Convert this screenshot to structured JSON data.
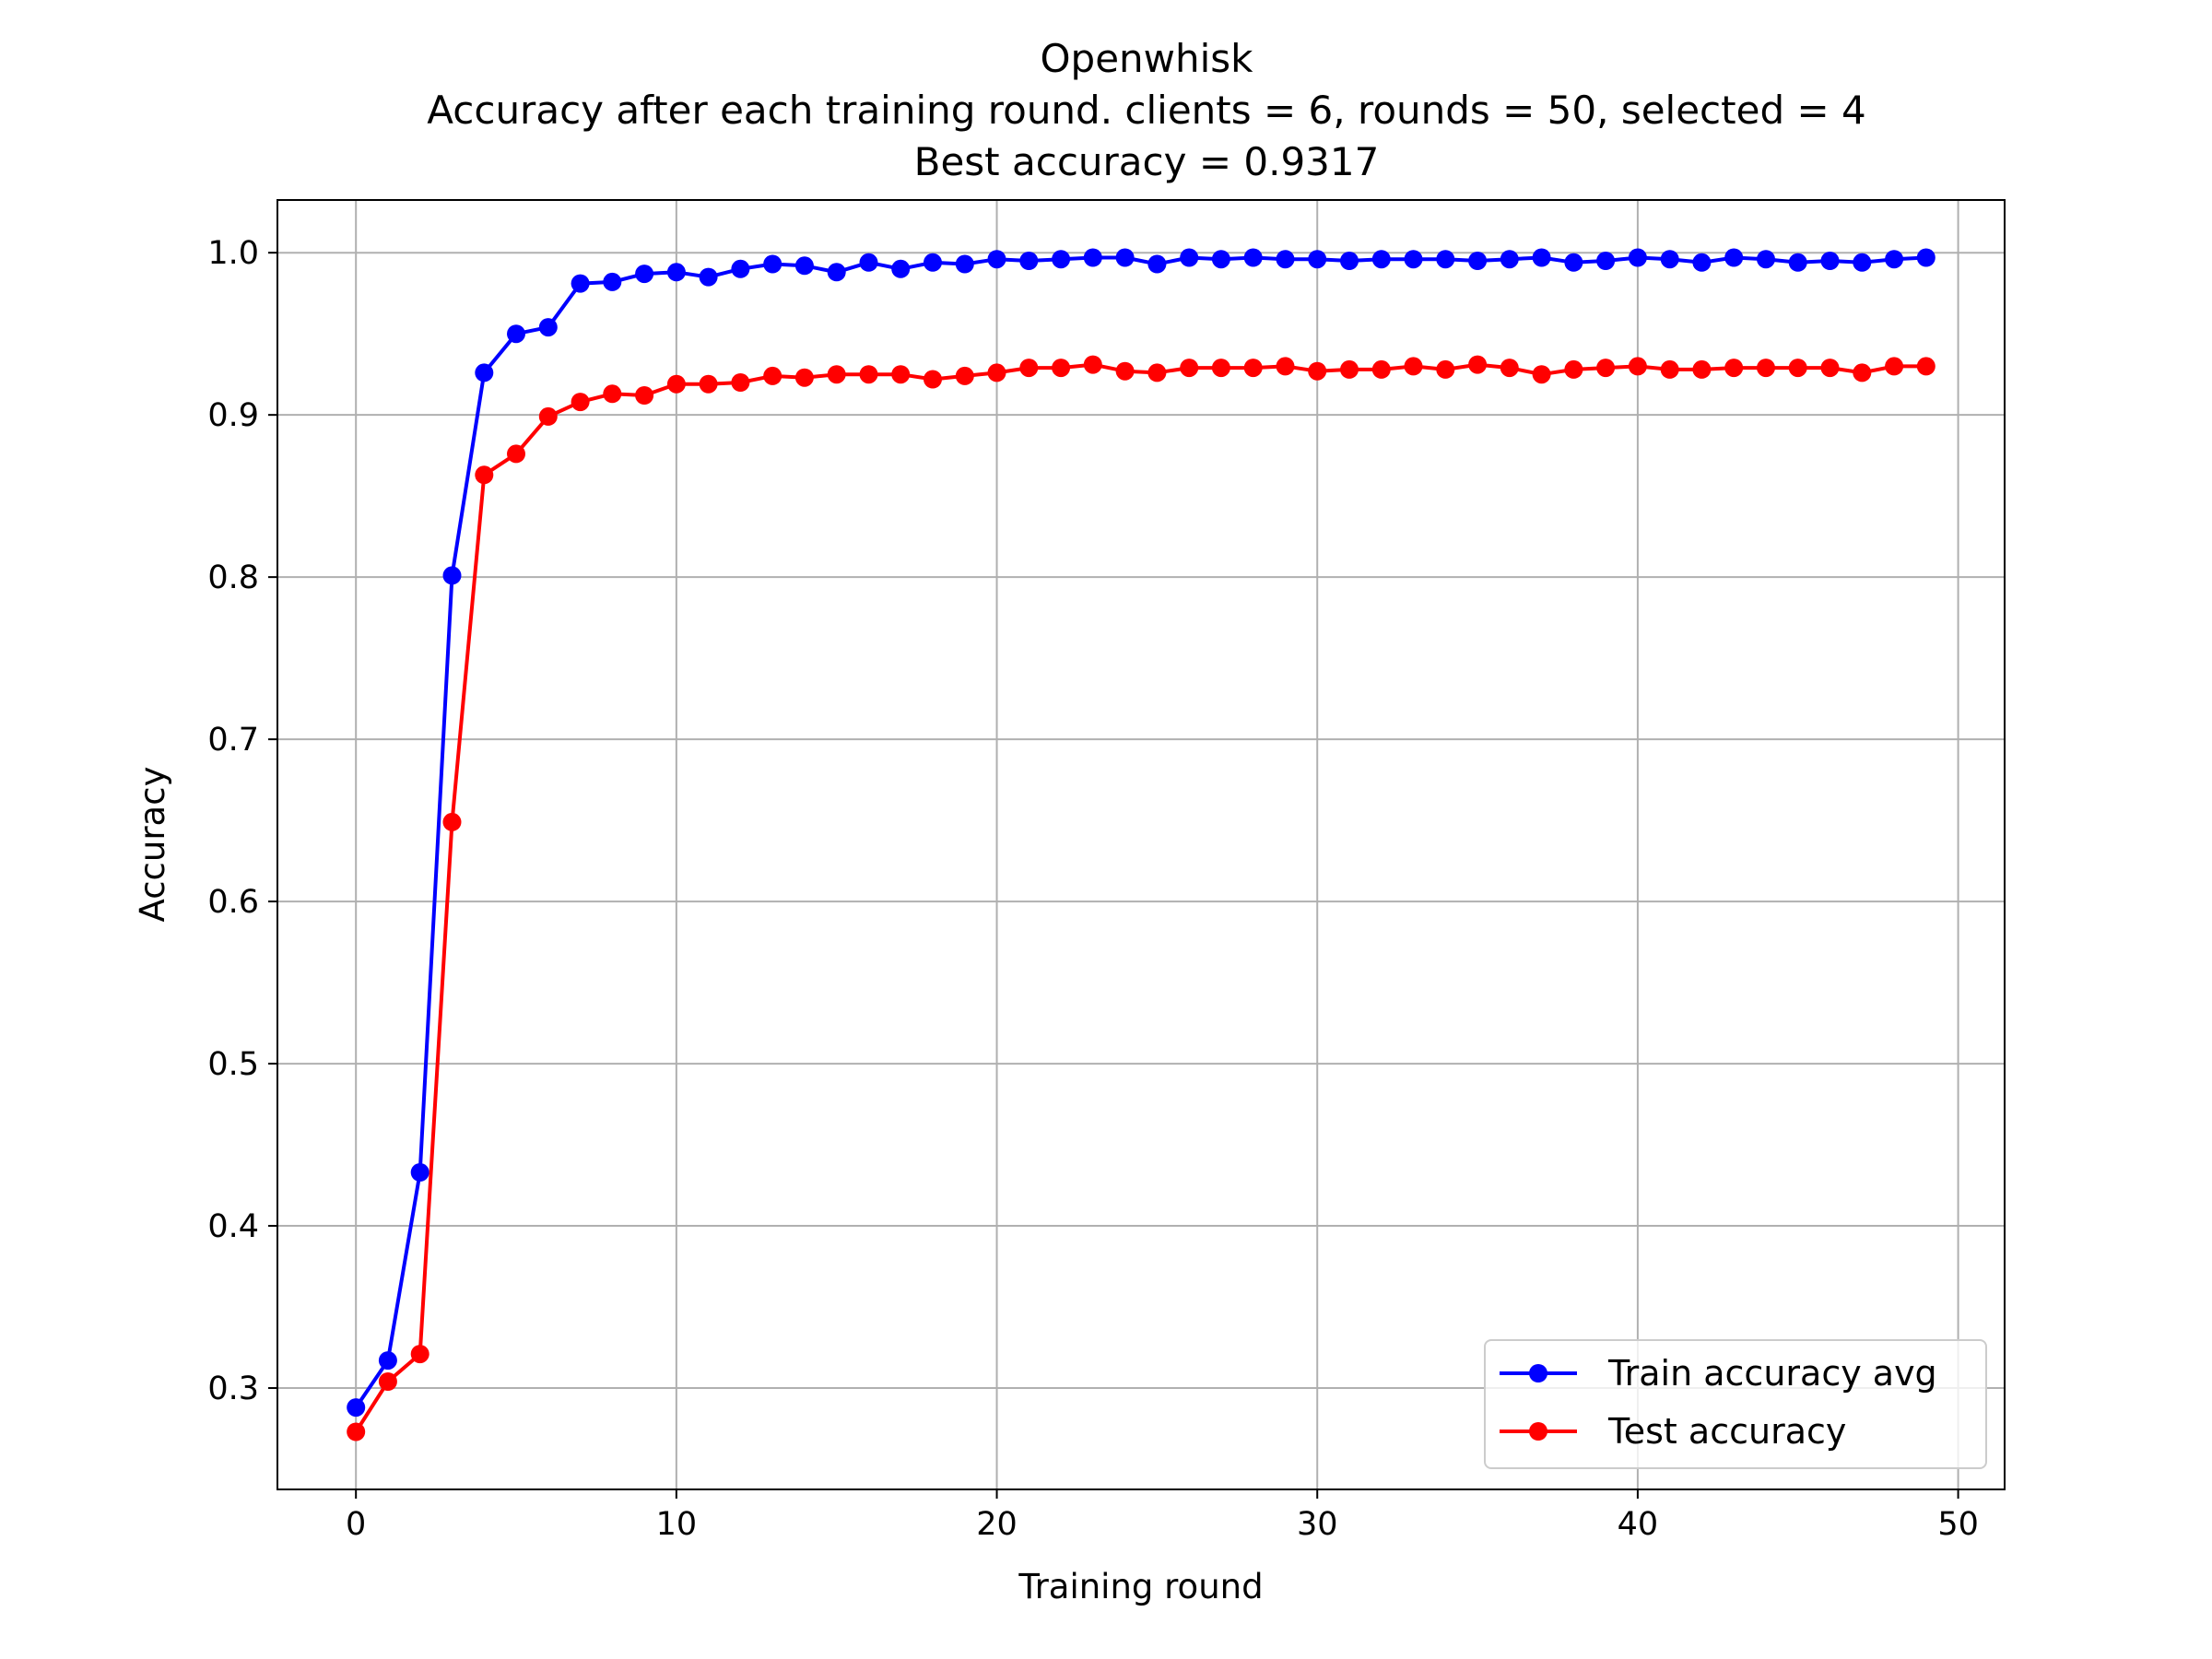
{
  "chart_data": {
    "type": "line",
    "title_lines": [
      "Openwhisk",
      "Accuracy after each training round. clients = 6, rounds = 50, selected = 4",
      "Best accuracy = 0.9317"
    ],
    "xlabel": "Training round",
    "ylabel": "Accuracy",
    "xlim": [
      -2.45,
      51.45
    ],
    "ylim": [
      0.2375,
      1.0325
    ],
    "xticks": [
      0,
      10,
      20,
      30,
      40,
      50
    ],
    "xtick_labels": [
      "0",
      "10",
      "20",
      "30",
      "40",
      "50"
    ],
    "yticks": [
      0.3,
      0.4,
      0.5,
      0.6,
      0.7,
      0.8,
      0.9,
      1.0
    ],
    "ytick_labels": [
      "0.3",
      "0.4",
      "0.5",
      "0.6",
      "0.7",
      "0.8",
      "0.9",
      "1.0"
    ],
    "grid": true,
    "legend_position": "lower-right",
    "x": [
      0,
      1,
      2,
      3,
      4,
      5,
      6,
      7,
      8,
      9,
      10,
      11,
      12,
      13,
      14,
      15,
      16,
      17,
      18,
      19,
      20,
      21,
      22,
      23,
      24,
      25,
      26,
      27,
      28,
      29,
      30,
      31,
      32,
      33,
      34,
      35,
      36,
      37,
      38,
      39,
      40,
      41,
      42,
      43,
      44,
      45,
      46,
      47,
      48,
      49
    ],
    "series": [
      {
        "name": "Train accuracy avg",
        "color": "#0000ff",
        "marker": "circle",
        "values": [
          0.288,
          0.317,
          0.433,
          0.801,
          0.926,
          0.95,
          0.954,
          0.981,
          0.982,
          0.987,
          0.988,
          0.985,
          0.99,
          0.993,
          0.992,
          0.988,
          0.994,
          0.99,
          0.994,
          0.993,
          0.996,
          0.995,
          0.996,
          0.997,
          0.997,
          0.993,
          0.997,
          0.996,
          0.997,
          0.996,
          0.996,
          0.995,
          0.996,
          0.996,
          0.996,
          0.995,
          0.996,
          0.997,
          0.994,
          0.995,
          0.997,
          0.996,
          0.994,
          0.997,
          0.996,
          0.994,
          0.995,
          0.994,
          0.996,
          0.997
        ]
      },
      {
        "name": "Test accuracy",
        "color": "#ff0000",
        "marker": "circle",
        "values": [
          0.273,
          0.304,
          0.321,
          0.649,
          0.863,
          0.876,
          0.899,
          0.908,
          0.913,
          0.912,
          0.919,
          0.919,
          0.92,
          0.924,
          0.923,
          0.925,
          0.925,
          0.925,
          0.922,
          0.924,
          0.926,
          0.929,
          0.929,
          0.931,
          0.927,
          0.926,
          0.929,
          0.929,
          0.929,
          0.93,
          0.927,
          0.928,
          0.928,
          0.93,
          0.928,
          0.931,
          0.929,
          0.925,
          0.928,
          0.929,
          0.93,
          0.928,
          0.928,
          0.929,
          0.929,
          0.929,
          0.929,
          0.926,
          0.93,
          0.93
        ]
      }
    ]
  }
}
